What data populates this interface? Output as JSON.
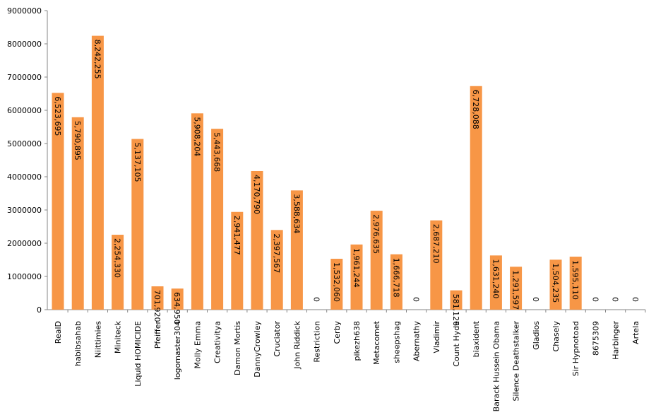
{
  "chart_data": {
    "type": "bar",
    "title": "",
    "xlabel": "",
    "ylabel": "",
    "ylim": [
      0,
      9000000
    ],
    "yticks": [
      "0",
      "1000000",
      "2000000",
      "3000000",
      "4000000",
      "5000000",
      "6000000",
      "7000000",
      "8000000",
      "9000000"
    ],
    "grid": false,
    "bar_color": "#F79646",
    "categories": [
      "RealD",
      "habibsahab",
      "Niittimies",
      "Miniteck",
      "Liquid HOMICIDE",
      "Pfeiffer",
      "logomaster304",
      "Molly Emma",
      "Creativitya",
      "Damon Mortis",
      "DannyCrowley",
      "Cruciator",
      "John Riddick",
      "Restriction",
      "Cerby",
      "pikezh638",
      "Metacomet",
      "sheepshag",
      "Abernathy",
      "Vladimir",
      "Count Hyde",
      "biaxident",
      "Barack Hussein Obama",
      "Silence Deathstalker",
      "Gladios",
      "Chasely",
      "Sir Hypnotoad",
      "8675309",
      "Harbinger",
      "Artela"
    ],
    "values": [
      6523695,
      5790895,
      8242255,
      2254330,
      5137105,
      701920,
      634950,
      5908204,
      5443668,
      2941477,
      4170790,
      2397567,
      3588634,
      0,
      1532060,
      1961244,
      2976635,
      1666718,
      0,
      2687210,
      581126,
      6728088,
      1631240,
      1291597,
      0,
      1504235,
      1595110,
      0,
      0,
      0
    ],
    "data_labels": [
      "6,523,695",
      "5,790,895",
      "8,242,255",
      "2,254,330",
      "5,137,105",
      "701,920",
      "634,950",
      "5,908,204",
      "5,443,668",
      "2,941,477",
      "4,170,790",
      "2,397,567",
      "3,588,634",
      "0",
      "1,532,060",
      "1,961,244",
      "2,976,635",
      "1,666,718",
      "0",
      "2,687,210",
      "581,126",
      "6,728,088",
      "1,631,240",
      "1,291,597",
      "0",
      "1,504,235",
      "1,595,110",
      "0",
      "0",
      "0"
    ]
  }
}
